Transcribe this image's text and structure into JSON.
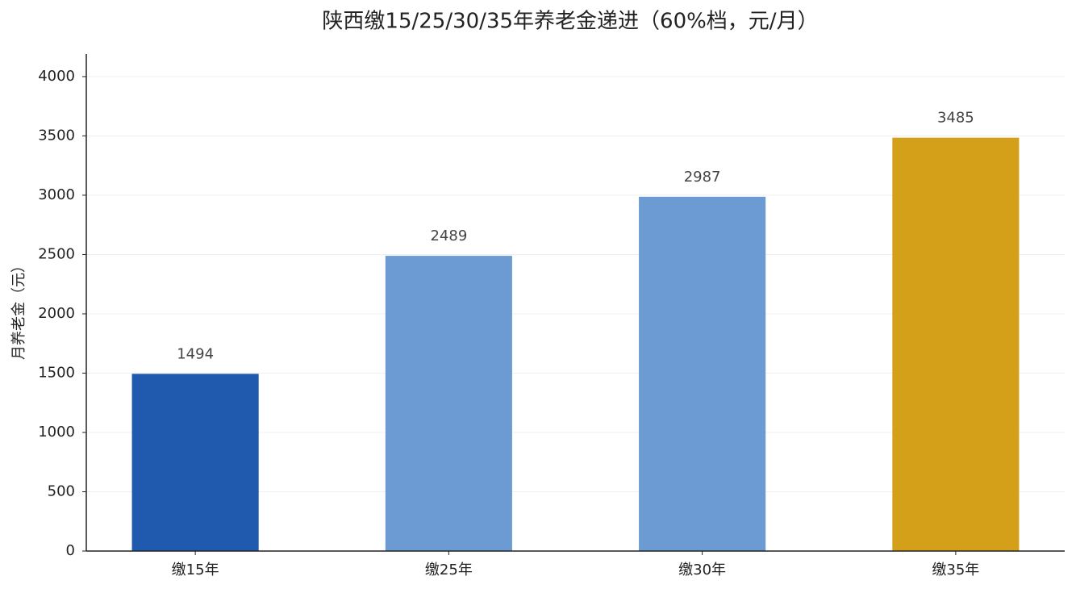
{
  "chart_data": {
    "type": "bar",
    "title": "陕西缴15/25/30/35年养老金递进（60%档，元/月）",
    "y_label": "月养老金（元）",
    "categories": [
      "缴15年",
      "缴25年",
      "缴30年",
      "缴35年"
    ],
    "values": [
      1494,
      2489,
      2987,
      3485
    ],
    "colors": [
      "#1f5aae",
      "#6b9bd2",
      "#6b9bd2",
      "#d4a01a"
    ],
    "ylim": [
      0,
      4190
    ],
    "yticks": [
      0,
      500,
      1000,
      1500,
      2000,
      2500,
      3000,
      3500,
      4000
    ],
    "grid": true
  }
}
